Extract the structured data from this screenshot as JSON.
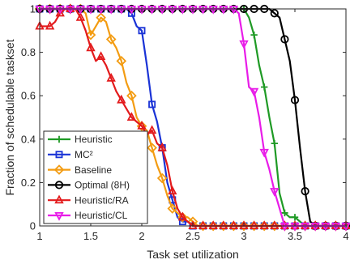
{
  "chart_data": {
    "type": "line",
    "title": "",
    "xlabel": "Task set utilization",
    "ylabel": "Fraction of schedulable taskset",
    "xlim": [
      1,
      4
    ],
    "ylim": [
      0,
      1
    ],
    "xticks": [
      "1",
      "1.5",
      "2",
      "2.5",
      "3",
      "3.5",
      "4"
    ],
    "yticks": [
      "0",
      "0.2",
      "0.4",
      "0.6",
      "0.8",
      "1"
    ],
    "grid": false,
    "legend_position": "bottom-left",
    "series": [
      {
        "name": "Heuristic",
        "color": "#1f9a25",
        "marker": "plus",
        "x": [
          1.0,
          1.05,
          1.1,
          1.15,
          1.2,
          1.25,
          1.3,
          1.35,
          1.4,
          1.45,
          1.5,
          1.55,
          1.6,
          1.65,
          1.7,
          1.75,
          1.8,
          1.85,
          1.9,
          1.95,
          2.0,
          2.05,
          2.1,
          2.15,
          2.2,
          2.25,
          2.3,
          2.35,
          2.4,
          2.45,
          2.5,
          2.55,
          2.6,
          2.65,
          2.7,
          2.75,
          2.8,
          2.85,
          2.9,
          2.95,
          3.0,
          3.05,
          3.1,
          3.15,
          3.2,
          3.25,
          3.3,
          3.35,
          3.4,
          3.45,
          3.5,
          3.55,
          3.6,
          3.65,
          3.7,
          3.75,
          3.8,
          3.85,
          3.9,
          3.95,
          4.0
        ],
        "y": [
          1,
          1,
          1,
          1,
          1,
          1,
          1,
          1,
          1,
          1,
          1,
          1,
          1,
          1,
          1,
          1,
          1,
          1,
          1,
          1,
          1,
          1,
          1,
          1,
          1,
          1,
          1,
          1,
          1,
          1,
          1,
          1,
          1,
          1,
          1,
          1,
          1,
          1,
          1,
          1,
          1,
          0.96,
          0.88,
          0.74,
          0.64,
          0.5,
          0.38,
          0.15,
          0.06,
          0.04,
          0.04,
          0.02,
          0,
          0,
          0,
          0,
          0,
          0,
          0,
          0,
          0
        ]
      },
      {
        "name": "MC²",
        "color": "#1a33d6",
        "marker": "square",
        "x": [
          1.0,
          1.05,
          1.1,
          1.15,
          1.2,
          1.25,
          1.3,
          1.35,
          1.4,
          1.45,
          1.5,
          1.55,
          1.6,
          1.65,
          1.7,
          1.75,
          1.8,
          1.85,
          1.9,
          1.95,
          2.0,
          2.05,
          2.1,
          2.15,
          2.2,
          2.25,
          2.3,
          2.35,
          2.4,
          2.45,
          2.5,
          2.55,
          2.6,
          2.65,
          2.7,
          2.75,
          2.8,
          2.85,
          2.9,
          2.95,
          3.0,
          3.05,
          3.1,
          3.15,
          3.2,
          3.25,
          3.3,
          3.35,
          3.4,
          3.45,
          3.5,
          3.55,
          3.6,
          3.65,
          3.7,
          3.75,
          3.8,
          3.85,
          3.9,
          3.95,
          4.0
        ],
        "y": [
          1,
          1,
          1,
          1,
          1,
          1,
          1,
          1,
          1,
          1,
          1,
          1,
          1,
          1,
          1,
          1,
          1,
          1,
          0.98,
          0.92,
          0.9,
          0.74,
          0.56,
          0.48,
          0.36,
          0.2,
          0.12,
          0.04,
          0.02,
          0.02,
          0,
          0,
          0,
          0,
          0,
          0,
          0,
          0,
          0,
          0,
          0,
          0,
          0,
          0,
          0,
          0,
          0,
          0,
          0,
          0,
          0,
          0,
          0,
          0,
          0,
          0,
          0,
          0,
          0,
          0,
          0
        ]
      },
      {
        "name": "Baseline",
        "color": "#f39c12",
        "marker": "diamond",
        "x": [
          1.0,
          1.05,
          1.1,
          1.15,
          1.2,
          1.25,
          1.3,
          1.35,
          1.4,
          1.45,
          1.5,
          1.55,
          1.6,
          1.65,
          1.7,
          1.75,
          1.8,
          1.85,
          1.9,
          1.95,
          2.0,
          2.05,
          2.1,
          2.15,
          2.2,
          2.25,
          2.3,
          2.35,
          2.4,
          2.45,
          2.5,
          2.55,
          2.6,
          2.65,
          2.7,
          2.75,
          2.8,
          2.85,
          2.9,
          2.95,
          3.0,
          3.05,
          3.1,
          3.15,
          3.2,
          3.25,
          3.3,
          3.35,
          3.4,
          3.45,
          3.5,
          3.55,
          3.6,
          3.65,
          3.7,
          3.75,
          3.8,
          3.85,
          3.9,
          3.95,
          4.0
        ],
        "y": [
          1,
          1,
          1,
          1,
          1,
          1,
          1,
          1,
          1,
          0.98,
          0.88,
          0.92,
          0.96,
          0.94,
          0.86,
          0.82,
          0.76,
          0.66,
          0.6,
          0.5,
          0.46,
          0.44,
          0.36,
          0.28,
          0.22,
          0.14,
          0.08,
          0.06,
          0.04,
          0.04,
          0.02,
          0,
          0,
          0,
          0,
          0,
          0,
          0,
          0,
          0,
          0,
          0,
          0,
          0,
          0,
          0,
          0,
          0,
          0,
          0,
          0,
          0,
          0,
          0,
          0,
          0,
          0,
          0,
          0,
          0,
          0
        ]
      },
      {
        "name": "Optimal (8H)",
        "color": "#000000",
        "marker": "circle",
        "x": [
          1.0,
          1.05,
          1.1,
          1.15,
          1.2,
          1.25,
          1.3,
          1.35,
          1.4,
          1.45,
          1.5,
          1.55,
          1.6,
          1.65,
          1.7,
          1.75,
          1.8,
          1.85,
          1.9,
          1.95,
          2.0,
          2.05,
          2.1,
          2.15,
          2.2,
          2.25,
          2.3,
          2.35,
          2.4,
          2.45,
          2.5,
          2.55,
          2.6,
          2.65,
          2.7,
          2.75,
          2.8,
          2.85,
          2.9,
          2.95,
          3.0,
          3.05,
          3.1,
          3.15,
          3.2,
          3.25,
          3.3,
          3.35,
          3.4,
          3.45,
          3.5,
          3.55,
          3.6,
          3.65,
          3.7,
          3.75,
          3.8,
          3.85,
          3.9,
          3.95,
          4.0
        ],
        "y": [
          1,
          1,
          1,
          1,
          1,
          1,
          1,
          1,
          1,
          1,
          1,
          1,
          1,
          1,
          1,
          1,
          1,
          1,
          1,
          1,
          1,
          1,
          1,
          1,
          1,
          1,
          1,
          1,
          1,
          1,
          1,
          1,
          1,
          1,
          1,
          1,
          1,
          1,
          1,
          1,
          1,
          1,
          1,
          1,
          1,
          1,
          0.98,
          0.96,
          0.86,
          0.76,
          0.58,
          0.36,
          0.16,
          0.02,
          0,
          0,
          0,
          0,
          0,
          0,
          0
        ]
      },
      {
        "name": "Heuristic/RA",
        "color": "#e31a1c",
        "marker": "triangle-up",
        "x": [
          1.0,
          1.05,
          1.1,
          1.15,
          1.2,
          1.25,
          1.3,
          1.35,
          1.4,
          1.45,
          1.5,
          1.55,
          1.6,
          1.65,
          1.7,
          1.75,
          1.8,
          1.85,
          1.9,
          1.95,
          2.0,
          2.05,
          2.1,
          2.15,
          2.2,
          2.25,
          2.3,
          2.35,
          2.4,
          2.45,
          2.5,
          2.55,
          2.6,
          2.65,
          2.7,
          2.75,
          2.8,
          2.85,
          2.9,
          2.95,
          3.0,
          3.05,
          3.1,
          3.15,
          3.2,
          3.25,
          3.3,
          3.35,
          3.4,
          3.45,
          3.5,
          3.55,
          3.6,
          3.65,
          3.7,
          3.75,
          3.8,
          3.85,
          3.9,
          3.95,
          4.0
        ],
        "y": [
          0.92,
          0.92,
          0.92,
          0.94,
          0.98,
          1,
          1,
          1,
          0.96,
          0.9,
          0.82,
          0.76,
          0.78,
          0.74,
          0.68,
          0.62,
          0.58,
          0.54,
          0.5,
          0.48,
          0.46,
          0.42,
          0.44,
          0.38,
          0.36,
          0.28,
          0.16,
          0.08,
          0.04,
          0.02,
          0,
          0,
          0,
          0,
          0,
          0,
          0,
          0,
          0,
          0,
          0,
          0,
          0,
          0,
          0,
          0,
          0,
          0,
          0,
          0,
          0,
          0,
          0,
          0,
          0,
          0,
          0,
          0,
          0,
          0,
          0
        ]
      },
      {
        "name": "Heuristic/CL",
        "color": "#e81ce8",
        "marker": "triangle-down",
        "x": [
          1.0,
          1.05,
          1.1,
          1.15,
          1.2,
          1.25,
          1.3,
          1.35,
          1.4,
          1.45,
          1.5,
          1.55,
          1.6,
          1.65,
          1.7,
          1.75,
          1.8,
          1.85,
          1.9,
          1.95,
          2.0,
          2.05,
          2.1,
          2.15,
          2.2,
          2.25,
          2.3,
          2.35,
          2.4,
          2.45,
          2.5,
          2.55,
          2.6,
          2.65,
          2.7,
          2.75,
          2.8,
          2.85,
          2.9,
          2.95,
          3.0,
          3.05,
          3.1,
          3.15,
          3.2,
          3.25,
          3.3,
          3.35,
          3.4,
          3.45,
          3.5,
          3.55,
          3.6,
          3.65,
          3.7,
          3.75,
          3.8,
          3.85,
          3.9,
          3.95,
          4.0
        ],
        "y": [
          1,
          1,
          1,
          1,
          1,
          1,
          1,
          1,
          1,
          1,
          1,
          1,
          1,
          1,
          1,
          1,
          1,
          1,
          1,
          1,
          1,
          1,
          1,
          1,
          1,
          1,
          1,
          1,
          1,
          1,
          1,
          1,
          1,
          1,
          1,
          1,
          1,
          1,
          1,
          0.98,
          0.84,
          0.64,
          0.62,
          0.5,
          0.34,
          0.26,
          0.16,
          0.08,
          0,
          0,
          0,
          0,
          0,
          0,
          0,
          0,
          0,
          0,
          0,
          0,
          0
        ]
      }
    ]
  }
}
